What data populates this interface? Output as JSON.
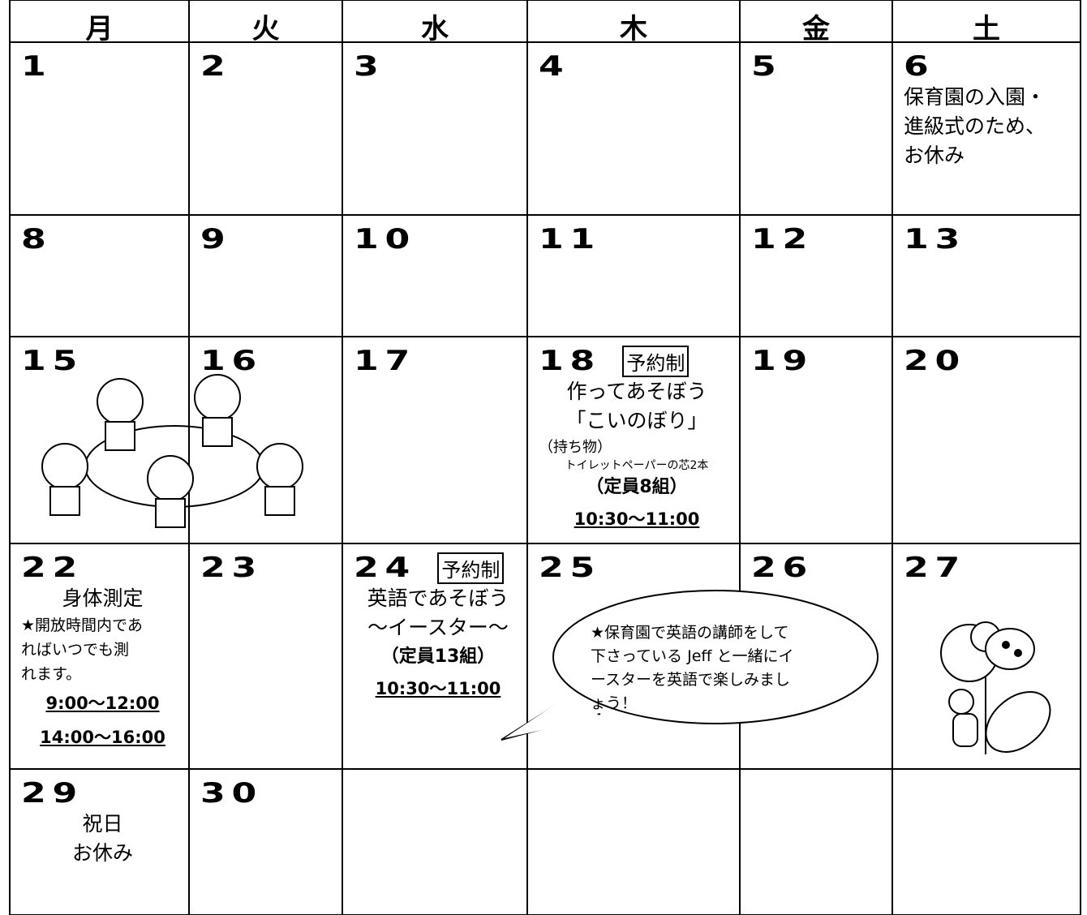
{
  "weekdays": [
    "月",
    "火",
    "水",
    "木",
    "金",
    "土"
  ],
  "weeks": [
    [
      {
        "day": "1"
      },
      {
        "day": "2"
      },
      {
        "day": "3"
      },
      {
        "day": "4"
      },
      {
        "day": "5"
      },
      {
        "day": "6",
        "lines": [
          "保育園の入園・",
          "進級式のため、",
          "お休み"
        ]
      }
    ],
    [
      {
        "day": "8"
      },
      {
        "day": "9"
      },
      {
        "day": "10"
      },
      {
        "day": "11"
      },
      {
        "day": "12"
      },
      {
        "day": "13"
      }
    ],
    [
      {
        "day": "15"
      },
      {
        "day": "16"
      },
      {
        "day": "17"
      },
      {
        "day": "18",
        "tag": "予約制",
        "title": "作ってあそぼう",
        "subtitle": "「こいのぼり」",
        "items_label": "（持ち物）",
        "items": "トイレットペーパーの芯2本",
        "capacity": "（定員8組）",
        "time": "10:30～11:00"
      },
      {
        "day": "19"
      },
      {
        "day": "20"
      }
    ],
    [
      {
        "day": "22",
        "title": "身体測定",
        "notes": [
          "★開放時間内であ",
          "ればいつでも測",
          "れます。"
        ],
        "times": [
          "9:00～12:00",
          "14:00～16:00"
        ]
      },
      {
        "day": "23"
      },
      {
        "day": "24",
        "tag": "予約制",
        "title": "英語であそぼう",
        "subtitle": "～イースター～",
        "capacity": "（定員13組）",
        "time": "10:30～11:00"
      },
      {
        "day": "25"
      },
      {
        "day": "26"
      },
      {
        "day": "27"
      }
    ],
    [
      {
        "day": "29",
        "lines": [
          "祝日",
          "お休み"
        ]
      },
      {
        "day": "30"
      }
    ]
  ],
  "bubble": [
    "★保育園で英語の講師をして",
    "下さっている Jeff と一緒にイ",
    "ースターを英語で楽しみまし",
    "ょう！"
  ]
}
